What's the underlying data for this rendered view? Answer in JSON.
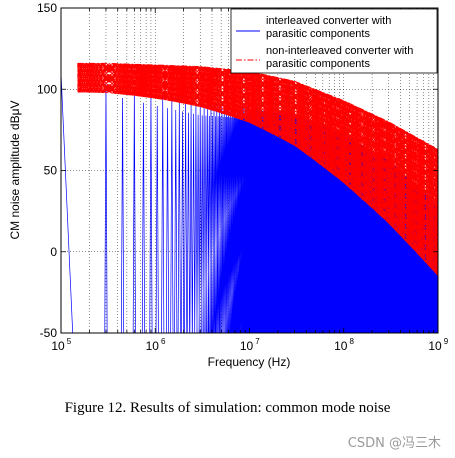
{
  "chart_data": {
    "type": "line",
    "xscale": "log",
    "xlim": [
      100000,
      1000000000
    ],
    "ylim": [
      -50,
      150
    ],
    "xlabel": "Frequency (Hz)",
    "ylabel": "CM noise amplitude dBμV",
    "xtick_labels": [
      {
        "base": "10",
        "exp": "5",
        "value": 100000
      },
      {
        "base": "10",
        "exp": "6",
        "value": 1000000
      },
      {
        "base": "10",
        "exp": "7",
        "value": 10000000
      },
      {
        "base": "10",
        "exp": "8",
        "value": 100000000
      },
      {
        "base": "10",
        "exp": "9",
        "value": 1000000000
      }
    ],
    "ytick_labels": [
      "-50",
      "0",
      "50",
      "100",
      "150"
    ],
    "ytick_values": [
      -50,
      0,
      50,
      100,
      150
    ],
    "grid": true,
    "grid_style": "dotted",
    "legend_position": "top-right",
    "series": [
      {
        "name": "interleaved converter with parasitic components",
        "legend_lines": [
          "interleaved converter with",
          "parasitic components"
        ],
        "color": "#0000ff",
        "line_style": "solid",
        "switching_frequency_hz": 150000,
        "first_harmonic_peak_dBuV": 110,
        "envelope": [
          [
            300000,
            103
          ],
          [
            1000000,
            96
          ],
          [
            3000000,
            90
          ],
          [
            10000000,
            88
          ],
          [
            30000000,
            84
          ],
          [
            100000000,
            72
          ],
          [
            300000000,
            56
          ],
          [
            1000000000,
            28
          ]
        ]
      },
      {
        "name": "non-interleaved converter with parasitic components",
        "legend_lines": [
          "non-interleaved converter with",
          "parasitic components"
        ],
        "color": "#ff0000",
        "line_style": "dashdot",
        "envelope": [
          [
            150000,
            116
          ],
          [
            300000,
            116
          ],
          [
            1000000,
            115
          ],
          [
            3000000,
            114
          ],
          [
            10000000,
            111
          ],
          [
            30000000,
            105
          ],
          [
            100000000,
            93
          ],
          [
            300000000,
            80
          ],
          [
            1000000000,
            63
          ]
        ]
      }
    ]
  },
  "caption": "Figure 12.  Results of simulation: common mode noise",
  "watermark": "CSDN @冯三木"
}
